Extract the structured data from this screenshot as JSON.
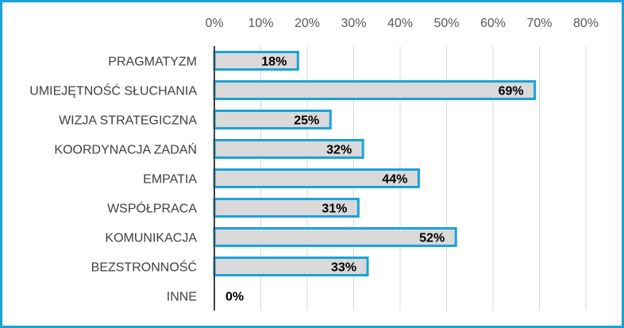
{
  "chart_data": {
    "type": "bar",
    "orientation": "horizontal",
    "categories": [
      "PRAGMATYZM",
      "UMIEJĘTNOŚĆ SŁUCHANIA",
      "WIZJA STRATEGICZNA",
      "KOORDYNACJA ZADAŃ",
      "EMPATIA",
      "WSPÓŁPRACA",
      "KOMUNIKACJA",
      "BEZSTRONNOŚĆ",
      "INNE"
    ],
    "values": [
      18,
      69,
      25,
      32,
      44,
      31,
      52,
      33,
      0
    ],
    "value_labels": [
      "18%",
      "69%",
      "25%",
      "32%",
      "44%",
      "31%",
      "52%",
      "33%",
      "0%"
    ],
    "xlim": [
      0,
      80
    ],
    "x_ticks": [
      0,
      10,
      20,
      30,
      40,
      50,
      60,
      70,
      80
    ],
    "x_tick_labels": [
      "0%",
      "10%",
      "20%",
      "30%",
      "40%",
      "50%",
      "60%",
      "70%",
      "80%"
    ],
    "x_axis_position": "top",
    "grid": true,
    "legend": "none",
    "colors": {
      "bar_fill": "#d9d9d9",
      "bar_stroke": "#1aa3d8",
      "frame": "#1aa3d8",
      "grid": "#d9d9d9",
      "axis": "#404040"
    }
  }
}
